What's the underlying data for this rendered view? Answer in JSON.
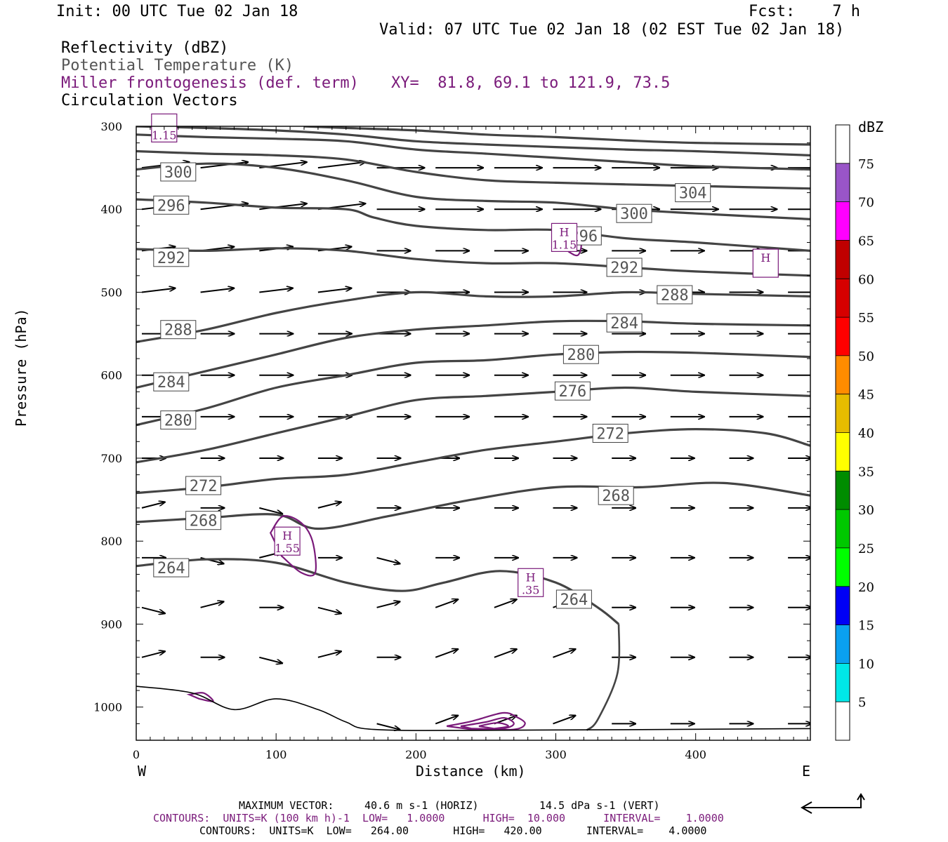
{
  "header": {
    "init": "Init: 00 UTC Tue 02 Jan 18",
    "fcst": "Fcst:    7 h",
    "valid": "Valid: 07 UTC Tue 02 Jan 18 (02 EST Tue 02 Jan 18)",
    "field1": "Reflectivity (dBZ)",
    "field2": "Potential Temperature (K)",
    "field3": "Miller frontogenesis (def. term)",
    "xy": "XY=  81.8, 69.1 to 121.9, 73.5",
    "field4": "Circulation Vectors"
  },
  "colors": {
    "theta": "#444444",
    "fronto": "#7a1a7a",
    "vector": "#000000"
  },
  "chart_data": {
    "type": "line",
    "xlabel": "Distance (km)",
    "ylabel": "Pressure (hPa)",
    "x_ticks": [
      0,
      100,
      200,
      300,
      400
    ],
    "y_ticks": [
      300,
      400,
      500,
      600,
      700,
      800,
      900,
      1000
    ],
    "xlim": [
      0,
      482
    ],
    "ylim": [
      300,
      1040
    ],
    "y_scale": "linear, inverted (pressure increasing downward)",
    "x_end_labels": {
      "left": "W",
      "right": "E"
    },
    "theta_isentropes": [
      {
        "label": "264",
        "x": [
          0,
          50,
          100,
          150,
          190,
          220,
          260,
          300,
          330,
          345
        ],
        "y": [
          830,
          822,
          826,
          850,
          860,
          850,
          836,
          850,
          880,
          900
        ]
      },
      {
        "label": "268",
        "x": [
          0,
          50,
          100,
          130,
          180,
          240,
          300,
          360,
          420,
          482
        ],
        "y": [
          777,
          772,
          768,
          785,
          770,
          750,
          735,
          735,
          730,
          745
        ]
      },
      {
        "label": "272",
        "x": [
          0,
          50,
          100,
          150,
          200,
          250,
          300,
          350,
          400,
          450,
          482
        ],
        "y": [
          742,
          735,
          725,
          720,
          705,
          690,
          680,
          670,
          665,
          670,
          685
        ]
      },
      {
        "label": "276",
        "x": [
          0,
          50,
          100,
          150,
          200,
          250,
          300,
          350,
          400,
          482
        ],
        "y": [
          705,
          690,
          670,
          650,
          630,
          625,
          620,
          615,
          620,
          625
        ]
      },
      {
        "label": "280",
        "x": [
          0,
          50,
          100,
          150,
          200,
          250,
          300,
          350,
          400,
          482
        ],
        "y": [
          660,
          640,
          615,
          600,
          585,
          582,
          575,
          572,
          573,
          578
        ]
      },
      {
        "label": "284",
        "x": [
          0,
          50,
          100,
          150,
          200,
          250,
          300,
          350,
          400,
          482
        ],
        "y": [
          615,
          595,
          575,
          555,
          545,
          540,
          535,
          535,
          538,
          540
        ]
      },
      {
        "label": "288",
        "x": [
          0,
          50,
          100,
          150,
          200,
          250,
          300,
          350,
          400,
          482
        ],
        "y": [
          560,
          545,
          525,
          510,
          500,
          505,
          505,
          500,
          502,
          505
        ]
      },
      {
        "label": "292",
        "x": [
          0,
          50,
          100,
          150,
          200,
          250,
          300,
          350,
          400,
          482
        ],
        "y": [
          448,
          450,
          447,
          450,
          460,
          465,
          465,
          470,
          475,
          480
        ]
      },
      {
        "label": "296",
        "x": [
          0,
          50,
          100,
          150,
          170,
          200,
          250,
          300,
          350,
          400,
          482
        ],
        "y": [
          388,
          392,
          398,
          400,
          410,
          420,
          425,
          425,
          435,
          440,
          450
        ]
      },
      {
        "label": "300",
        "x": [
          0,
          50,
          100,
          150,
          200,
          250,
          300,
          350,
          400,
          482
        ],
        "y": [
          352,
          345,
          350,
          365,
          385,
          390,
          392,
          400,
          405,
          412
        ]
      },
      {
        "label": "304",
        "x": [
          0,
          50,
          100,
          150,
          200,
          250,
          300,
          350,
          400,
          482
        ],
        "y": [
          330,
          333,
          335,
          340,
          355,
          365,
          368,
          370,
          372,
          375
        ]
      },
      {
        "label": "",
        "x": [
          0,
          50,
          100,
          150,
          200,
          250,
          300,
          350,
          400,
          482
        ],
        "y": [
          310,
          313,
          315,
          318,
          328,
          333,
          338,
          343,
          348,
          352
        ]
      },
      {
        "label": "",
        "x": [
          0,
          50,
          100,
          150,
          200,
          250,
          300,
          350,
          400,
          482
        ],
        "y": [
          300,
          302,
          305,
          310,
          318,
          322,
          325,
          328,
          330,
          335
        ]
      },
      {
        "label": "",
        "x": [
          120,
          150,
          200,
          250,
          300,
          350,
          400,
          482
        ],
        "y": [
          300,
          302,
          305,
          310,
          313,
          317,
          320,
          322
        ]
      }
    ],
    "theta_labels": [
      {
        "text": "300",
        "x": 30,
        "y": 355
      },
      {
        "text": "296",
        "x": 25,
        "y": 395
      },
      {
        "text": "292",
        "x": 25,
        "y": 458
      },
      {
        "text": "288",
        "x": 30,
        "y": 545
      },
      {
        "text": "284",
        "x": 25,
        "y": 608
      },
      {
        "text": "280",
        "x": 30,
        "y": 654
      },
      {
        "text": "272",
        "x": 48,
        "y": 733
      },
      {
        "text": "268",
        "x": 48,
        "y": 775
      },
      {
        "text": "264",
        "x": 25,
        "y": 832
      },
      {
        "text": "304",
        "x": 398,
        "y": 380
      },
      {
        "text": "300",
        "x": 356,
        "y": 405
      },
      {
        "text": "296",
        "x": 320,
        "y": 432
      },
      {
        "text": "292",
        "x": 349,
        "y": 470
      },
      {
        "text": "288",
        "x": 385,
        "y": 503
      },
      {
        "text": "284",
        "x": 349,
        "y": 537
      },
      {
        "text": "280",
        "x": 318,
        "y": 575
      },
      {
        "text": "276",
        "x": 312,
        "y": 619
      },
      {
        "text": "272",
        "x": 339,
        "y": 670
      },
      {
        "text": "268",
        "x": 343,
        "y": 745
      },
      {
        "text": "264",
        "x": 313,
        "y": 870
      }
    ],
    "fronto_maxima": [
      {
        "letter": "H",
        "value": "1.55",
        "x": 108,
        "y": 800
      },
      {
        "letter": "H",
        "value": "1.15",
        "x": 306,
        "y": 434
      },
      {
        "letter": "H",
        "value": ".35",
        "x": 282,
        "y": 850
      },
      {
        "letter": "H",
        "value": "",
        "x": 450,
        "y": 465
      },
      {
        "letter": "",
        "value": "1.15",
        "x": 20,
        "y": 302
      }
    ],
    "colorbar": {
      "title": "dBZ",
      "levels": [
        5,
        10,
        15,
        20,
        25,
        30,
        35,
        40,
        45,
        50,
        55,
        60,
        65,
        70,
        75
      ],
      "colors": [
        "#ffffff",
        "#00e8e8",
        "#0aa0f0",
        "#0000f6",
        "#00ff00",
        "#00c800",
        "#008c00",
        "#ffff00",
        "#e6bc00",
        "#ff8c00",
        "#ff0000",
        "#d60000",
        "#c00000",
        "#ff00ff",
        "#9955c8",
        "#ffffff"
      ]
    }
  },
  "footer": {
    "max_vector_label": "MAXIMUM VECTOR:",
    "max_vector_horiz": "40.6 m s-1 (HORIZ)",
    "max_vector_vert": "14.5 dPa s-1 (VERT)",
    "contours1": "CONTOURS:  UNITS=K (100 km h)-1  LOW=   1.0000      HIGH=  10.000      INTERVAL=    1.0000",
    "contours2": "CONTOURS:  UNITS=K  LOW=   264.00       HIGH=   420.00       INTERVAL=    4.0000"
  }
}
